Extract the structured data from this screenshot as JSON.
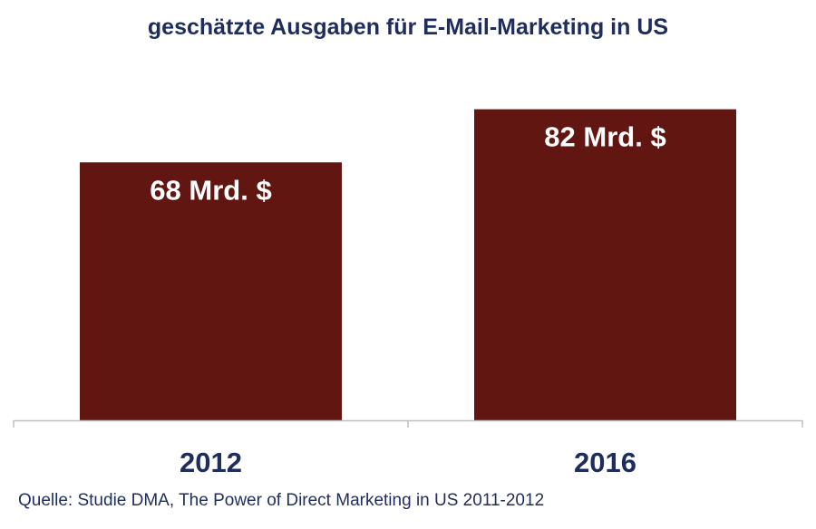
{
  "chart_data": {
    "type": "bar",
    "title": "geschätzte Ausgaben für E-Mail-Marketing in US",
    "categories": [
      "2012",
      "2016"
    ],
    "values": [
      68,
      82
    ],
    "data_labels": [
      "68 Mrd. $",
      "82 Mrd. $"
    ],
    "unit": "Mrd. $",
    "ylim": [
      0,
      96
    ],
    "grid": false,
    "legend": "none",
    "bar_color": "#621611",
    "axis_color": "#bfbfbf"
  },
  "source": "Quelle: Studie DMA, The Power of Direct Marketing in US 2011-2012"
}
